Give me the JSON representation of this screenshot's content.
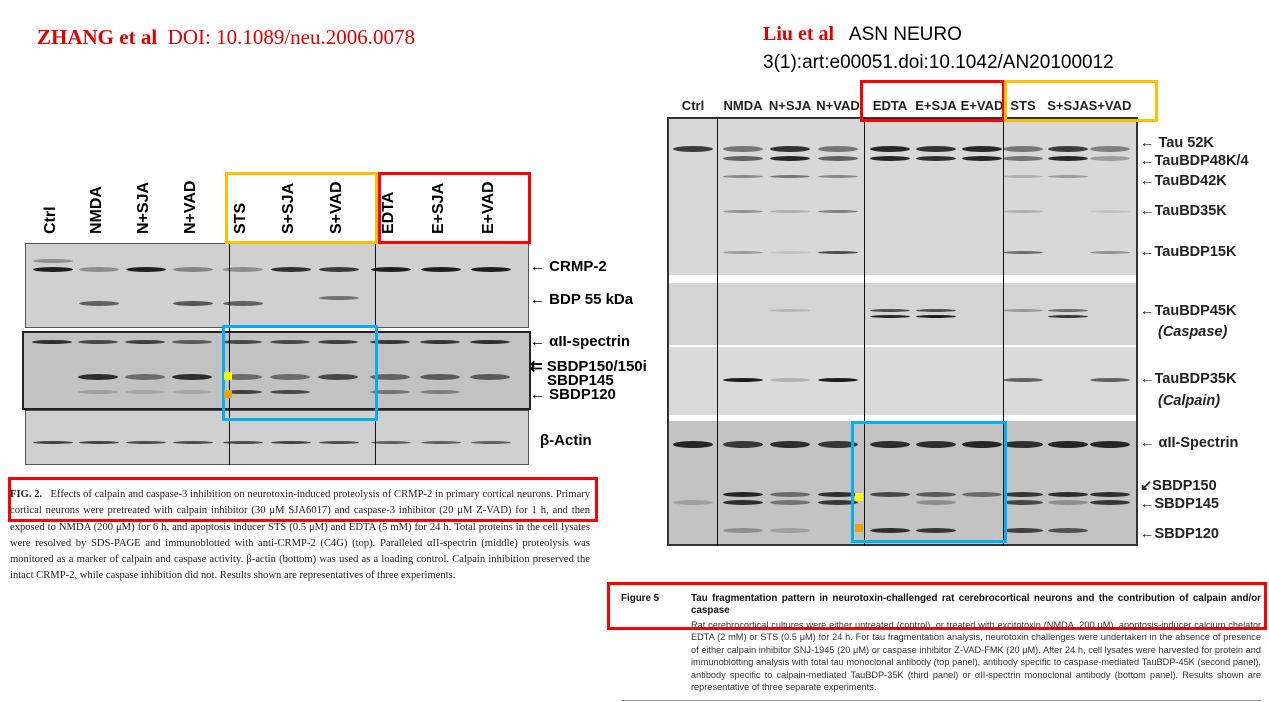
{
  "left": {
    "author": "ZHANG et al",
    "doi": "DOI: 10.1089/neu.2006.0078",
    "lanes": [
      "Ctrl",
      "NMDA",
      "N+SJA",
      "N+VAD",
      "STS",
      "S+SJA",
      "S+VAD",
      "EDTA",
      "E+SJA",
      "E+VAD"
    ],
    "markers": [
      "CRMP-2",
      "BDP 55 kDa",
      "αII-spectrin",
      "SBDP150/150i",
      "SBDP145",
      "SBDP120",
      "β-Actin"
    ],
    "caption_label": "FIG. 2.",
    "caption_text": "Effects of calpain and caspase-3 inhibition on neurotoxin-induced proteolysis of CRMP-2 in primary cortical neurons. Primary cortical neurons were pretreated with calpain inhibitor (30 μM SJA6017) and caspase-3 inhibitor (20 μM Z-VAD) for 1 h, and then exposed to NMDA (200 μM) for 6 h, and apoptosis inducer STS (0.5 μM) and EDTA (5 mM) for 24 h. Total proteins in the cell lysates were resolved by SDS-PAGE and immunoblotted with anti-CRMP-2 (C4G) (top). Paralleled αII-spectrin (middle) proteolysis was monitored as a marker of calpain and caspase activity. β-actin (bottom) was used as a loading control. Calpain inhibition preserved the intact CRMP-2, while caspase inhibition did not. Results shown are representatives of three experiments."
  },
  "right": {
    "author": "Liu et al",
    "journal": "ASN NEURO",
    "citation": "3(1):art:e00051.doi:10.1042/AN20100012",
    "lanes": [
      "Ctrl",
      "NMDA",
      "N+SJA",
      "N+VAD",
      "EDTA",
      "E+SJA",
      "E+VAD",
      "STS",
      "S+SJA",
      "S+VAD"
    ],
    "markers": [
      "← Tau 52K",
      "←TauBDP48K/4",
      "←TauBD42K",
      "←TauBD35K",
      "←TauBDP15K",
      "←TauBDP45K",
      "(Caspase)",
      "←TauBDP35K",
      "(Calpain)",
      "← αII-Spectrin",
      "↙SBDP150",
      "←SBDP145",
      "←SBDP120"
    ],
    "caption_label": "Figure 5",
    "caption_title": "Tau fragmentation pattern in neurotoxin-challenged rat cerebrocortical neurons and the contribution of calpain and/or caspase",
    "caption_text": "Rat cerebrocortical cultures were either untreated (control), or treated with excitotoxin (NMDA, 200 μM), apoptosis-inducer calcium chelator EDTA (2 mM) or STS (0.5 μM) for 24 h. For tau fragmentation analysis, neurotoxin challenges were undertaken in the absence of presence of either calpain inhibitor SNJ-1945 (20 μM) or caspase inhibitor Z-VAD-FMK (20 μM). After 24 h, cell lysates were harvested for protein and immunoblotting analysis with total tau monoclonal antibody (top panel), antibody specific to caspase-mediated TauBDP-45K (second panel), antibody specific to calpain-mediated TauBDP-35K (third panel) or αII-spectrin monoclonal antibody (bottom panel). Results shown are representative of three separate experiments."
  },
  "colors": {
    "highlight_red": "#ff0000",
    "highlight_orange": "#ffc000",
    "highlight_blue": "#00b0f0",
    "title_red": "#e00000"
  }
}
